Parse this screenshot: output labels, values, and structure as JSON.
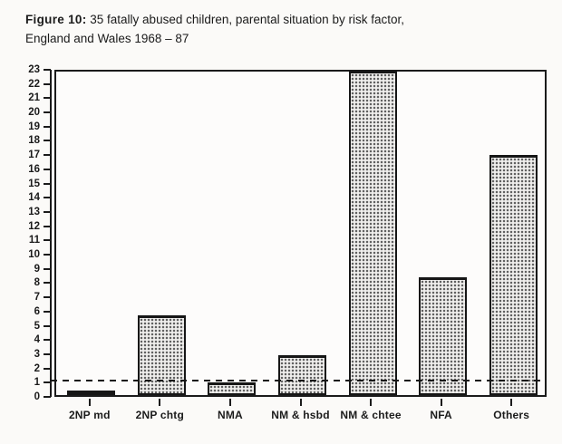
{
  "figure": {
    "label": "Figure 10:",
    "title_rest": " 35 fatally abused children, parental situation by risk factor,",
    "title_line2": "England and Wales 1968 – 87"
  },
  "chart_data": {
    "type": "bar",
    "title": "Figure 10: 35 fatally abused children, parental situation by risk factor, England and Wales 1968 – 87",
    "categories": [
      "2NP md",
      "2NP chtg",
      "NMA",
      "NM & hsbd",
      "NM & chtee",
      "NFA",
      "Others"
    ],
    "values": [
      0.3,
      5.6,
      0.9,
      2.8,
      22.8,
      8.3,
      16.9
    ],
    "xlabel": "",
    "ylabel": "",
    "ylim": [
      0,
      23
    ],
    "y_tick_step": 1,
    "y_tick_labels": [
      "0",
      "1",
      "2",
      "3",
      "4",
      "5",
      "6",
      "7",
      "8",
      "9",
      "10",
      "11",
      "12",
      "13",
      "14",
      "15",
      "16",
      "17",
      "18",
      "19",
      "20",
      "21",
      "22",
      "23"
    ],
    "reference_line_y": 1,
    "reference_line_style": "dashed",
    "grid": false,
    "legend": "none",
    "bar_fill": "stippled-dot-pattern",
    "ink_color": "#1b1b1b",
    "paper_color": "#fbfaf8"
  }
}
